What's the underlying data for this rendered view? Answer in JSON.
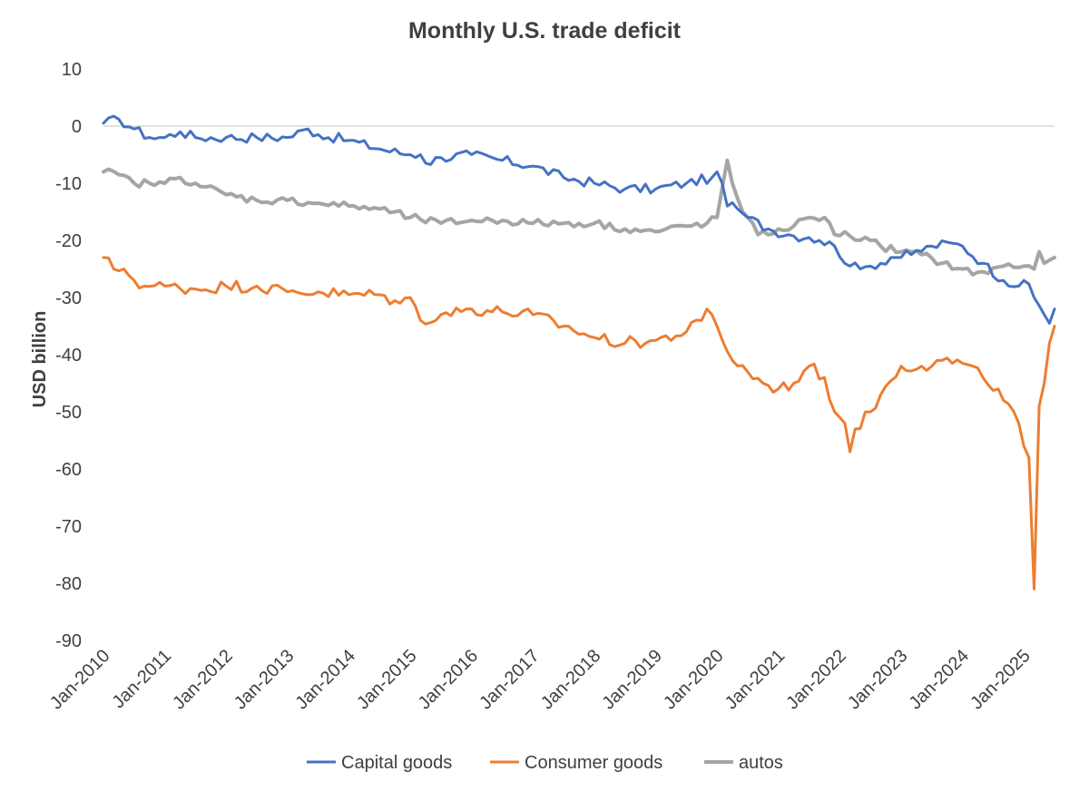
{
  "chart_data": {
    "type": "line",
    "title": "Monthly U.S. trade deficit",
    "xlabel": "",
    "ylabel": "USD billion",
    "ylim": [
      -90,
      10
    ],
    "yticks": [
      10,
      0,
      -10,
      -20,
      -30,
      -40,
      -50,
      -60,
      -70,
      -80,
      -90
    ],
    "grid": "horizontal zero line only",
    "legend_position": "bottom",
    "x_start": "Jan-2010",
    "x_tick_labels": [
      "Jan-2010",
      "Jan-2011",
      "Jan-2012",
      "Jan-2013",
      "Jan-2014",
      "Jan-2015",
      "Jan-2016",
      "Jan-2017",
      "Jan-2018",
      "Jan-2019",
      "Jan-2020",
      "Jan-2021",
      "Jan-2022",
      "Jan-2023",
      "Jan-2024",
      "Jan-2025"
    ],
    "month_count": 187,
    "series": [
      {
        "name": "Capital goods",
        "color": "#4472C4",
        "keypoints": [
          [
            0,
            0.5
          ],
          [
            3,
            1.2
          ],
          [
            6,
            -0.5
          ],
          [
            9,
            -2
          ],
          [
            12,
            -2
          ],
          [
            15,
            -1
          ],
          [
            18,
            -2
          ],
          [
            24,
            -2
          ],
          [
            30,
            -2
          ],
          [
            36,
            -2
          ],
          [
            40,
            -0.5
          ],
          [
            42,
            -1.5
          ],
          [
            48,
            -2.5
          ],
          [
            54,
            -4
          ],
          [
            60,
            -5
          ],
          [
            62,
            -5
          ],
          [
            63,
            -6.5
          ],
          [
            66,
            -5.5
          ],
          [
            72,
            -5
          ],
          [
            78,
            -6
          ],
          [
            84,
            -7
          ],
          [
            90,
            -9
          ],
          [
            96,
            -10
          ],
          [
            102,
            -11
          ],
          [
            108,
            -11
          ],
          [
            114,
            -10
          ],
          [
            119,
            -9
          ],
          [
            120,
            -8
          ],
          [
            121,
            -10
          ],
          [
            122,
            -14
          ],
          [
            124,
            -14.5
          ],
          [
            126,
            -16
          ],
          [
            130,
            -18
          ],
          [
            134,
            -19
          ],
          [
            138,
            -19.5
          ],
          [
            140,
            -20
          ],
          [
            143,
            -21
          ],
          [
            146,
            -24.5
          ],
          [
            148,
            -25
          ],
          [
            150,
            -24.5
          ],
          [
            154,
            -23
          ],
          [
            158,
            -22.5
          ],
          [
            162,
            -21
          ],
          [
            166,
            -20.5
          ],
          [
            168,
            -21
          ],
          [
            172,
            -24
          ],
          [
            176,
            -27
          ],
          [
            179,
            -28
          ],
          [
            180,
            -27
          ],
          [
            182,
            -30
          ],
          [
            184,
            -33
          ],
          [
            185,
            -34.5
          ],
          [
            186,
            -32
          ]
        ]
      },
      {
        "name": "Consumer goods",
        "color": "#ED7D31",
        "keypoints": [
          [
            0,
            -23
          ],
          [
            2,
            -25
          ],
          [
            4,
            -25
          ],
          [
            6,
            -27
          ],
          [
            8,
            -28
          ],
          [
            12,
            -28
          ],
          [
            18,
            -28.5
          ],
          [
            24,
            -28
          ],
          [
            30,
            -28
          ],
          [
            36,
            -29
          ],
          [
            42,
            -29
          ],
          [
            48,
            -29.5
          ],
          [
            54,
            -29.5
          ],
          [
            58,
            -31
          ],
          [
            60,
            -30
          ],
          [
            62,
            -34
          ],
          [
            66,
            -33
          ],
          [
            72,
            -32
          ],
          [
            78,
            -32.5
          ],
          [
            84,
            -33
          ],
          [
            90,
            -35
          ],
          [
            96,
            -37
          ],
          [
            102,
            -38
          ],
          [
            108,
            -37.5
          ],
          [
            114,
            -36
          ],
          [
            117,
            -34
          ],
          [
            118,
            -32
          ],
          [
            120,
            -35
          ],
          [
            123,
            -41
          ],
          [
            126,
            -43
          ],
          [
            129,
            -45
          ],
          [
            132,
            -46
          ],
          [
            135,
            -45
          ],
          [
            138,
            -42
          ],
          [
            141,
            -44
          ],
          [
            143,
            -50
          ],
          [
            145,
            -52
          ],
          [
            146,
            -57
          ],
          [
            147,
            -53
          ],
          [
            150,
            -50
          ],
          [
            152,
            -47
          ],
          [
            156,
            -42
          ],
          [
            160,
            -42
          ],
          [
            164,
            -41
          ],
          [
            168,
            -41.5
          ],
          [
            172,
            -44
          ],
          [
            175,
            -46
          ],
          [
            176,
            -48
          ],
          [
            179,
            -52
          ],
          [
            180,
            -56
          ],
          [
            181,
            -58
          ],
          [
            182,
            -81
          ],
          [
            183,
            -49
          ],
          [
            184,
            -45
          ],
          [
            185,
            -38
          ],
          [
            186,
            -35
          ]
        ]
      },
      {
        "name": "autos",
        "color": "#A5A5A5",
        "keypoints": [
          [
            0,
            -8
          ],
          [
            3,
            -8.5
          ],
          [
            6,
            -10
          ],
          [
            9,
            -10
          ],
          [
            12,
            -10
          ],
          [
            15,
            -9
          ],
          [
            18,
            -10
          ],
          [
            24,
            -12
          ],
          [
            30,
            -13
          ],
          [
            36,
            -13
          ],
          [
            42,
            -13.5
          ],
          [
            48,
            -14
          ],
          [
            54,
            -14.5
          ],
          [
            60,
            -16
          ],
          [
            66,
            -17
          ],
          [
            72,
            -16.5
          ],
          [
            78,
            -16.5
          ],
          [
            84,
            -17
          ],
          [
            90,
            -17
          ],
          [
            96,
            -17
          ],
          [
            102,
            -18
          ],
          [
            108,
            -18.5
          ],
          [
            114,
            -17.5
          ],
          [
            118,
            -17
          ],
          [
            120,
            -16
          ],
          [
            122,
            -6
          ],
          [
            123,
            -10
          ],
          [
            125,
            -15
          ],
          [
            128,
            -19
          ],
          [
            130,
            -19
          ],
          [
            132,
            -18
          ],
          [
            135,
            -17.5
          ],
          [
            138,
            -16
          ],
          [
            141,
            -16
          ],
          [
            143,
            -19
          ],
          [
            145,
            -18.5
          ],
          [
            148,
            -20
          ],
          [
            150,
            -20
          ],
          [
            152,
            -21
          ],
          [
            156,
            -22
          ],
          [
            160,
            -22.5
          ],
          [
            164,
            -24
          ],
          [
            168,
            -25
          ],
          [
            170,
            -26
          ],
          [
            172,
            -25.5
          ],
          [
            176,
            -24.5
          ],
          [
            180,
            -24.5
          ],
          [
            182,
            -25
          ],
          [
            183,
            -22
          ],
          [
            184,
            -24
          ],
          [
            186,
            -23
          ]
        ]
      }
    ]
  }
}
